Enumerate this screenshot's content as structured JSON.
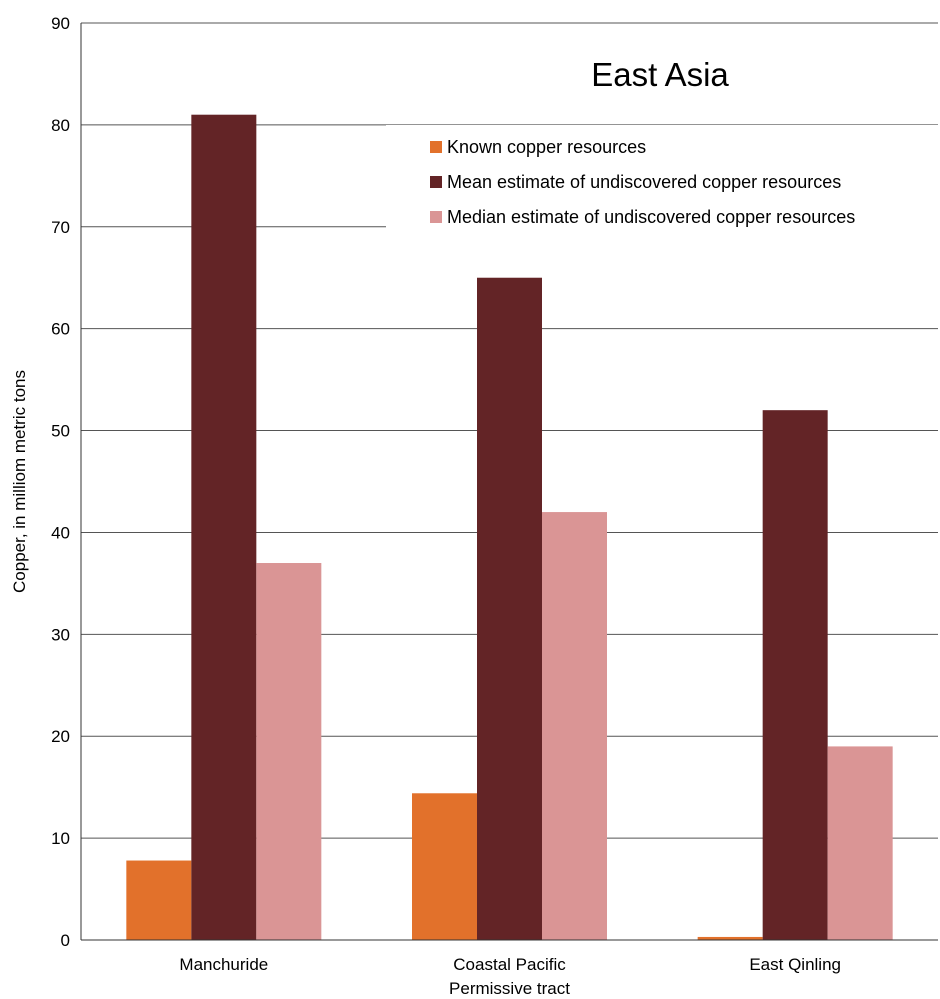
{
  "chart_data": {
    "type": "bar",
    "title": "East Asia",
    "ylabel": "Copper, in milliom metric tons",
    "xlabel": "Permissive tract",
    "categories": [
      "Manchuride",
      "Coastal Pacific",
      "East Qinling"
    ],
    "series": [
      {
        "name": "Known copper resources",
        "values": [
          7.8,
          14.4,
          0.3
        ]
      },
      {
        "name": "Mean estimate of undiscovered copper resources",
        "values": [
          81,
          65,
          52
        ]
      },
      {
        "name": "Median estimate of undiscovered copper resources",
        "values": [
          37,
          42,
          19
        ]
      }
    ],
    "ylim": [
      0,
      90
    ],
    "yticks": [
      0,
      10,
      20,
      30,
      40,
      50,
      60,
      70,
      80,
      90
    ],
    "grid": true,
    "legend_position": "top-right"
  },
  "colors": {
    "known": "#e2712b",
    "mean": "#632426",
    "median": "#da9595",
    "grid": "#555555",
    "axis": "#333333"
  }
}
